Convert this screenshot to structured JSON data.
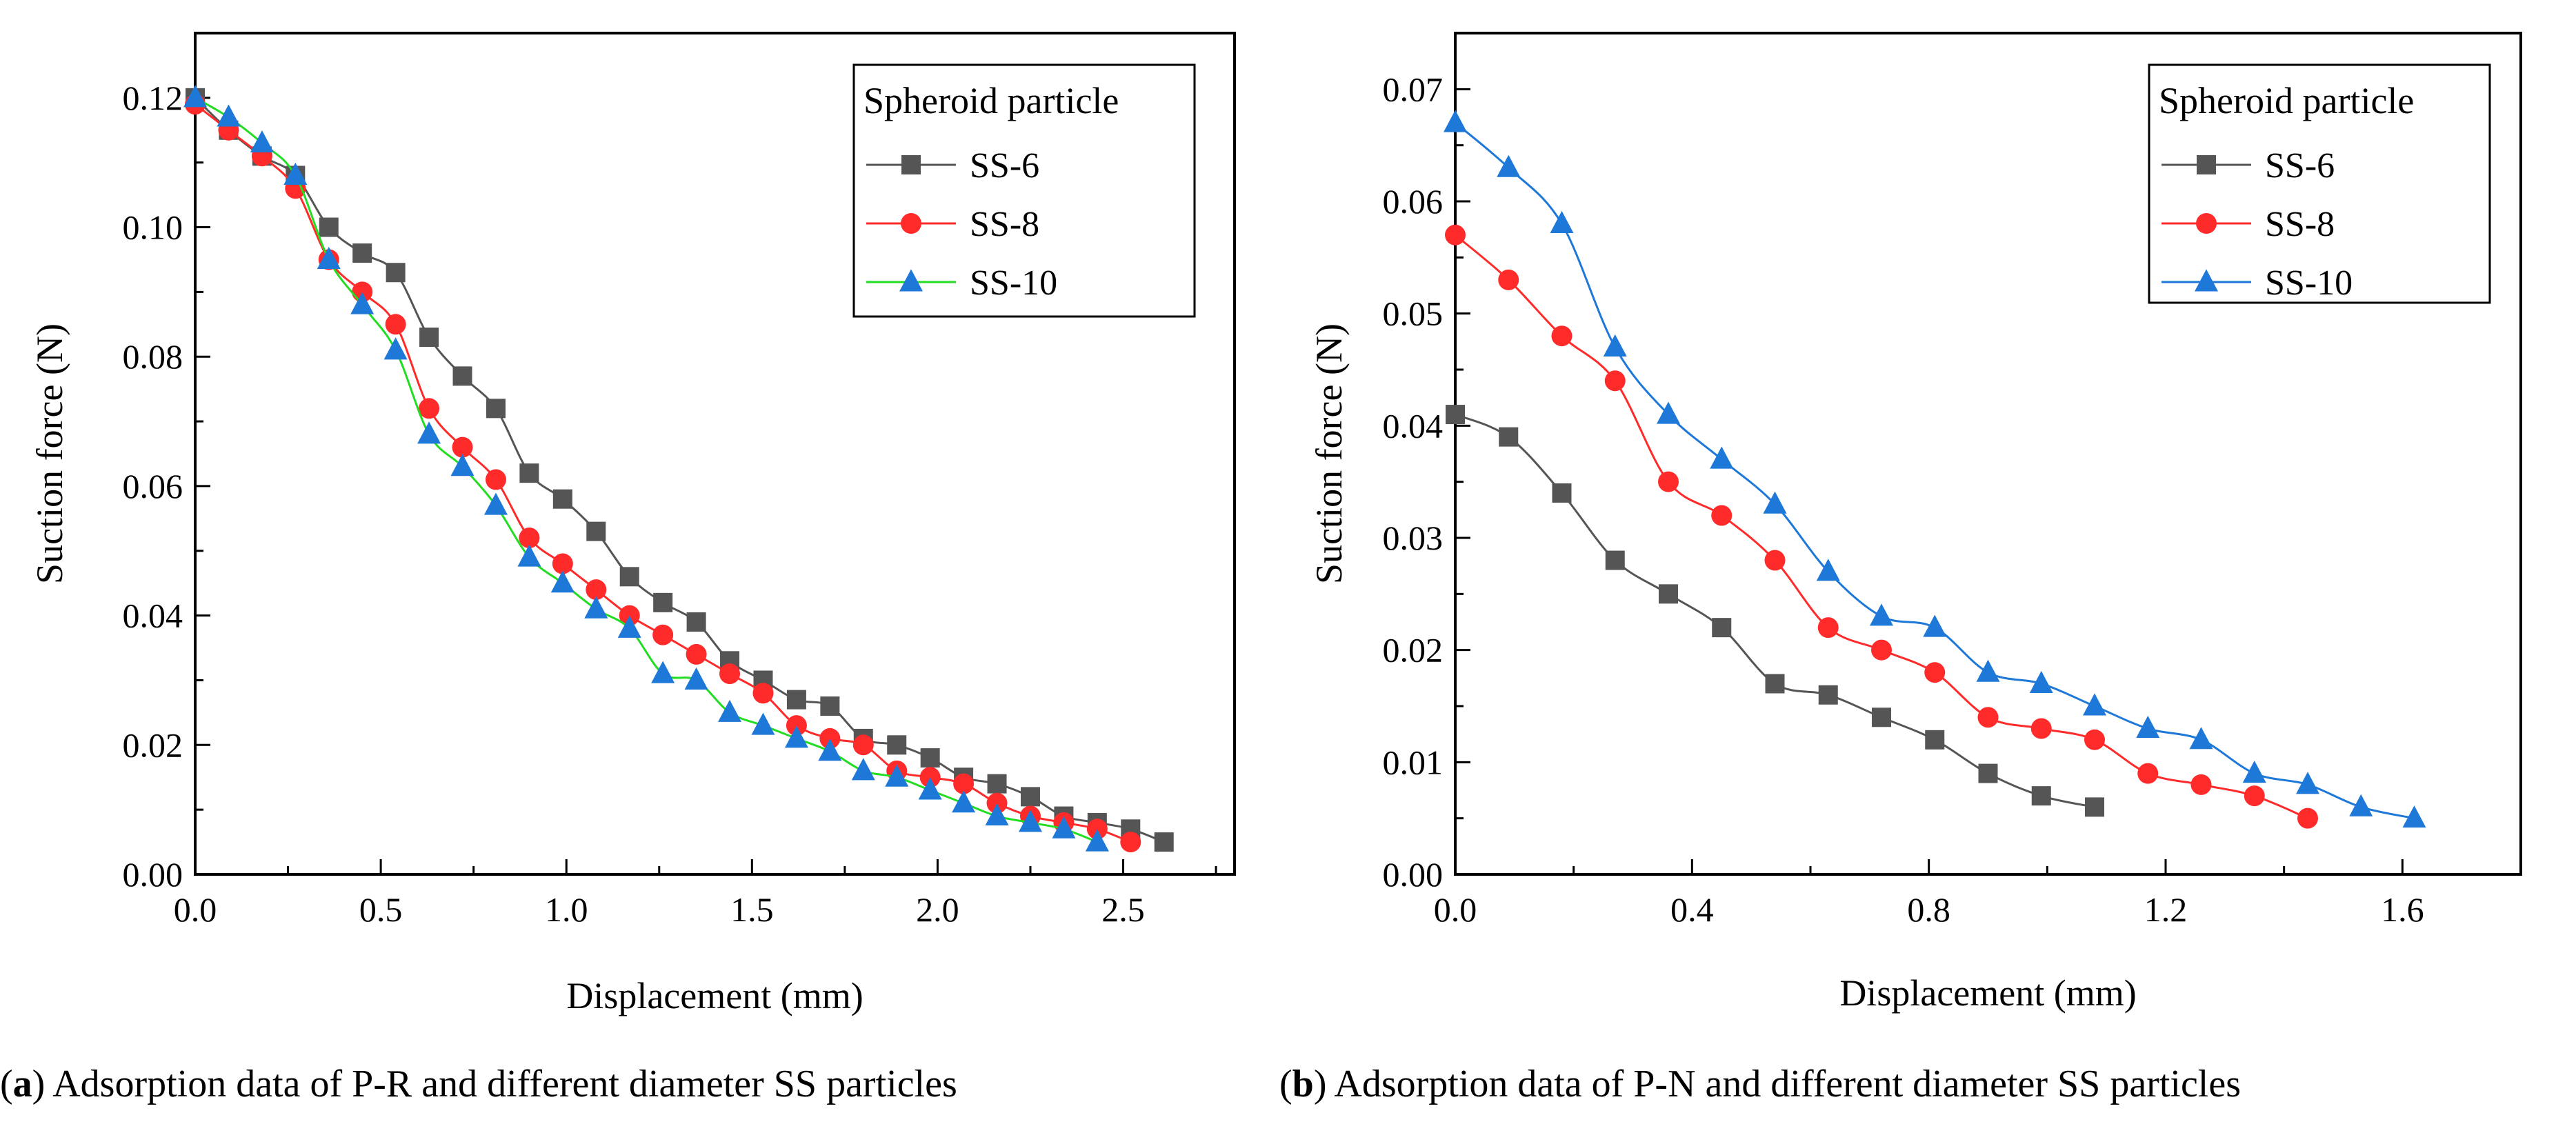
{
  "chart_data": [
    {
      "type": "line",
      "panel": "a",
      "xlabel": "Displacement (mm)",
      "ylabel": "Suction force (N)",
      "xlim": [
        0,
        2.8
      ],
      "ylim": [
        0,
        0.13
      ],
      "x_ticks": [
        0.0,
        0.5,
        1.0,
        1.5,
        2.0,
        2.5
      ],
      "x_tick_labels": [
        "0.0",
        "0.5",
        "1.0",
        "1.5",
        "2.0",
        "2.5"
      ],
      "y_ticks": [
        0.0,
        0.02,
        0.04,
        0.06,
        0.08,
        0.1,
        0.12
      ],
      "y_tick_labels": [
        "0.00",
        "0.02",
        "0.04",
        "0.06",
        "0.08",
        "0.10",
        "0.12"
      ],
      "legend_title": "Spheroid particle",
      "legend_position": "top-right",
      "caption_label": "a",
      "caption_text": " Adsorption data of P-R and different diameter SS particles",
      "series": [
        {
          "name": "SS-6",
          "color": "#555555",
          "marker": "square",
          "x": [
            0,
            0.09,
            0.18,
            0.27,
            0.36,
            0.45,
            0.54,
            0.63,
            0.72,
            0.81,
            0.9,
            0.99,
            1.08,
            1.17,
            1.26,
            1.35,
            1.44,
            1.53,
            1.62,
            1.71,
            1.8,
            1.89,
            1.98,
            2.07,
            2.16,
            2.25,
            2.34,
            2.43,
            2.52,
            2.61
          ],
          "y": [
            0.12,
            0.115,
            0.111,
            0.108,
            0.1,
            0.096,
            0.093,
            0.083,
            0.077,
            0.072,
            0.062,
            0.058,
            0.053,
            0.046,
            0.042,
            0.039,
            0.033,
            0.03,
            0.027,
            0.026,
            0.021,
            0.02,
            0.018,
            0.015,
            0.014,
            0.012,
            0.009,
            0.008,
            0.007,
            0.005
          ]
        },
        {
          "name": "SS-8",
          "color": "#ff2a2a",
          "marker": "circle",
          "x": [
            0,
            0.09,
            0.18,
            0.27,
            0.36,
            0.45,
            0.54,
            0.63,
            0.72,
            0.81,
            0.9,
            0.99,
            1.08,
            1.17,
            1.26,
            1.35,
            1.44,
            1.53,
            1.62,
            1.71,
            1.8,
            1.89,
            1.98,
            2.07,
            2.16,
            2.25,
            2.34,
            2.43,
            2.52
          ],
          "y": [
            0.119,
            0.115,
            0.111,
            0.106,
            0.095,
            0.09,
            0.085,
            0.072,
            0.066,
            0.061,
            0.052,
            0.048,
            0.044,
            0.04,
            0.037,
            0.034,
            0.031,
            0.028,
            0.023,
            0.021,
            0.02,
            0.016,
            0.015,
            0.014,
            0.011,
            0.009,
            0.008,
            0.007,
            0.005
          ]
        },
        {
          "name": "SS-10",
          "color": "#1e78d8",
          "marker": "triangle",
          "line_color": "#22dd22",
          "x": [
            0,
            0.09,
            0.18,
            0.27,
            0.36,
            0.45,
            0.54,
            0.63,
            0.72,
            0.81,
            0.9,
            0.99,
            1.08,
            1.17,
            1.26,
            1.35,
            1.44,
            1.53,
            1.62,
            1.71,
            1.8,
            1.89,
            1.98,
            2.07,
            2.16,
            2.25,
            2.34,
            2.43
          ],
          "y": [
            0.12,
            0.117,
            0.113,
            0.108,
            0.095,
            0.088,
            0.081,
            0.068,
            0.063,
            0.057,
            0.049,
            0.045,
            0.041,
            0.038,
            0.031,
            0.03,
            0.025,
            0.023,
            0.021,
            0.019,
            0.016,
            0.015,
            0.013,
            0.011,
            0.009,
            0.008,
            0.007,
            0.005
          ]
        }
      ]
    },
    {
      "type": "line",
      "panel": "b",
      "xlabel": "Displacement (mm)",
      "ylabel": "Suction force (N)",
      "xlim": [
        0,
        1.8
      ],
      "ylim": [
        0,
        0.075
      ],
      "x_ticks": [
        0.0,
        0.4,
        0.8,
        1.2,
        1.6
      ],
      "x_tick_labels": [
        "0.0",
        "0.4",
        "0.8",
        "1.2",
        "1.6"
      ],
      "y_ticks": [
        0.0,
        0.01,
        0.02,
        0.03,
        0.04,
        0.05,
        0.06,
        0.07
      ],
      "y_tick_labels": [
        "0.00",
        "0.01",
        "0.02",
        "0.03",
        "0.04",
        "0.05",
        "0.06",
        "0.07"
      ],
      "legend_title": "Spheroid particle",
      "legend_position": "top-right",
      "caption_label": "b",
      "caption_text": " Adsorption data of P-N and different diameter SS particles",
      "series": [
        {
          "name": "SS-6",
          "color": "#555555",
          "marker": "square",
          "x": [
            0,
            0.09,
            0.18,
            0.27,
            0.36,
            0.45,
            0.54,
            0.63,
            0.72,
            0.81,
            0.9,
            0.99,
            1.08
          ],
          "y": [
            0.041,
            0.039,
            0.034,
            0.028,
            0.025,
            0.022,
            0.017,
            0.016,
            0.014,
            0.012,
            0.009,
            0.007,
            0.006
          ]
        },
        {
          "name": "SS-8",
          "color": "#ff2a2a",
          "marker": "circle",
          "x": [
            0,
            0.09,
            0.18,
            0.27,
            0.36,
            0.45,
            0.54,
            0.63,
            0.72,
            0.81,
            0.9,
            0.99,
            1.08,
            1.17,
            1.26,
            1.35,
            1.44
          ],
          "y": [
            0.057,
            0.053,
            0.048,
            0.044,
            0.035,
            0.032,
            0.028,
            0.022,
            0.02,
            0.018,
            0.014,
            0.013,
            0.012,
            0.009,
            0.008,
            0.007,
            0.005
          ]
        },
        {
          "name": "SS-10",
          "color": "#1e78d8",
          "marker": "triangle",
          "x": [
            0,
            0.09,
            0.18,
            0.27,
            0.36,
            0.45,
            0.54,
            0.63,
            0.72,
            0.81,
            0.9,
            0.99,
            1.08,
            1.17,
            1.26,
            1.35,
            1.44,
            1.53,
            1.62
          ],
          "y": [
            0.067,
            0.063,
            0.058,
            0.047,
            0.041,
            0.037,
            0.033,
            0.027,
            0.023,
            0.022,
            0.018,
            0.017,
            0.015,
            0.013,
            0.012,
            0.009,
            0.008,
            0.006,
            0.005
          ]
        }
      ]
    }
  ]
}
